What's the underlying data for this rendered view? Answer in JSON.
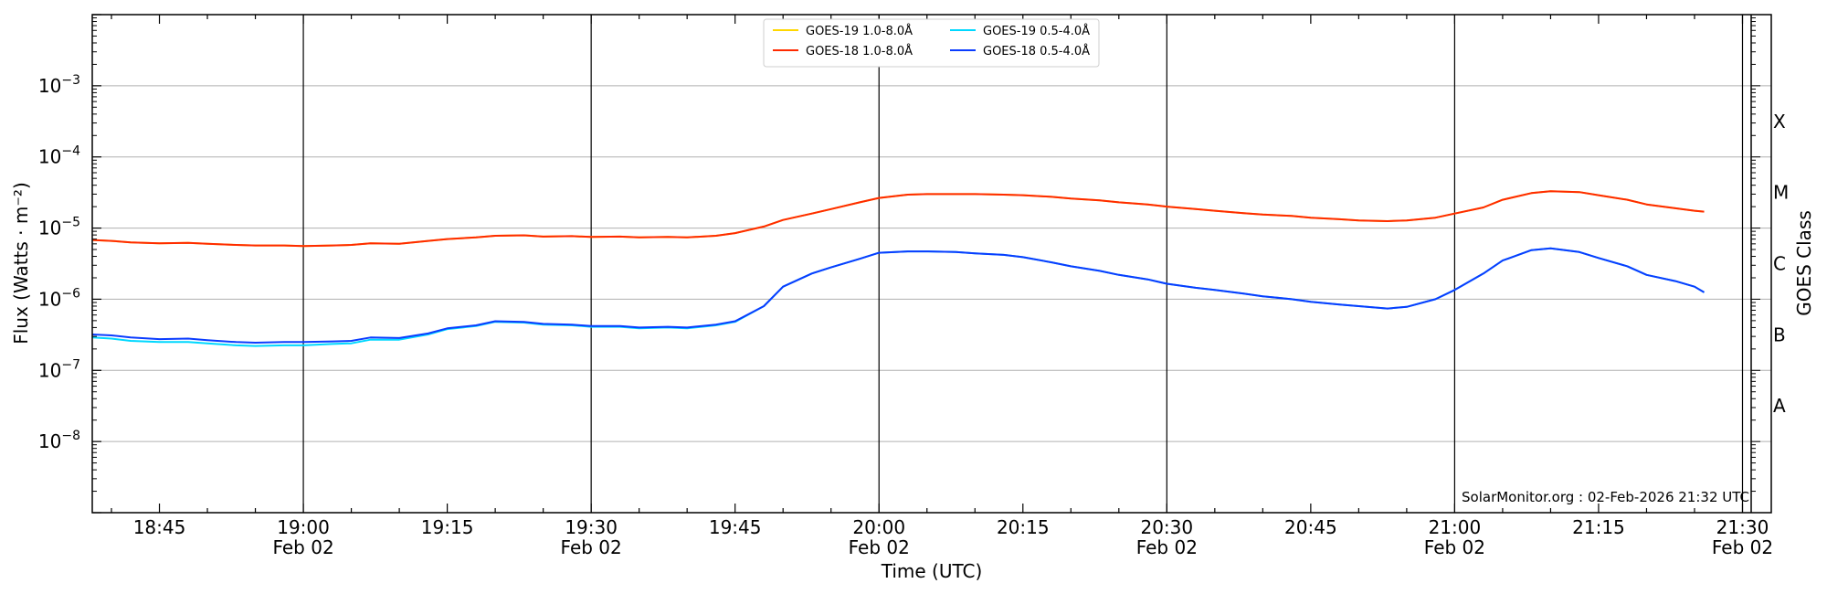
{
  "chart_data": {
    "type": "line",
    "xlabel": "Time (UTC)",
    "ylabel": "Flux (Watts · m⁻²)",
    "y2label": "GOES Class",
    "yscale": "log",
    "ylim": [
      1e-09,
      0.01
    ],
    "xlim": [
      "18:38",
      "21:33"
    ],
    "grid": true,
    "legend_position": "top-center",
    "credit": "SolarMonitor.org : 02-Feb-2026 21:32 UTC",
    "x_ticks": [
      {
        "time": "18:45",
        "label": "18:45",
        "date": ""
      },
      {
        "time": "19:00",
        "label": "19:00",
        "date": "Feb 02"
      },
      {
        "time": "19:15",
        "label": "19:15",
        "date": ""
      },
      {
        "time": "19:30",
        "label": "19:30",
        "date": "Feb 02"
      },
      {
        "time": "19:45",
        "label": "19:45",
        "date": ""
      },
      {
        "time": "20:00",
        "label": "20:00",
        "date": "Feb 02"
      },
      {
        "time": "20:15",
        "label": "20:15",
        "date": ""
      },
      {
        "time": "20:30",
        "label": "20:30",
        "date": "Feb 02"
      },
      {
        "time": "20:45",
        "label": "20:45",
        "date": ""
      },
      {
        "time": "21:00",
        "label": "21:00",
        "date": "Feb 02"
      },
      {
        "time": "21:15",
        "label": "21:15",
        "date": ""
      },
      {
        "time": "21:30",
        "label": "21:30",
        "date": "Feb 02"
      }
    ],
    "vlines": [
      "19:00",
      "19:30",
      "20:00",
      "20:30",
      "21:00",
      "21:30"
    ],
    "y_ticks": [
      {
        "exp": -8,
        "base": "10",
        "sup": "−8"
      },
      {
        "exp": -7,
        "base": "10",
        "sup": "−7"
      },
      {
        "exp": -6,
        "base": "10",
        "sup": "−6"
      },
      {
        "exp": -5,
        "base": "10",
        "sup": "−5"
      },
      {
        "exp": -4,
        "base": "10",
        "sup": "−4"
      },
      {
        "exp": -3,
        "base": "10",
        "sup": "−3"
      }
    ],
    "classes": [
      {
        "label": "A",
        "exp": -7.5
      },
      {
        "label": "B",
        "exp": -6.5
      },
      {
        "label": "C",
        "exp": -5.5
      },
      {
        "label": "M",
        "exp": -4.5
      },
      {
        "label": "X",
        "exp": -3.5
      }
    ],
    "series": [
      {
        "name": "GOES-19 1.0-8.0Å",
        "color": "#ffd700",
        "x": [
          "18:38",
          "18:40",
          "18:42",
          "18:45",
          "18:48",
          "18:50",
          "18:53",
          "18:55",
          "18:58",
          "19:00",
          "19:03",
          "19:05",
          "19:07",
          "19:10",
          "19:13",
          "19:15",
          "19:18",
          "19:20",
          "19:23",
          "19:25",
          "19:28",
          "19:30",
          "19:33",
          "19:35",
          "19:38",
          "19:40",
          "19:43",
          "19:45",
          "19:48",
          "19:50",
          "19:53",
          "19:55",
          "19:58",
          "20:00",
          "20:03",
          "20:05",
          "20:08",
          "20:10",
          "20:13",
          "20:15",
          "20:18",
          "20:20",
          "20:23",
          "20:25",
          "20:28",
          "20:30",
          "20:33",
          "20:35",
          "20:38",
          "20:40",
          "20:43",
          "20:45",
          "20:48",
          "20:50",
          "20:53",
          "20:55",
          "20:58",
          "21:00",
          "21:03",
          "21:05",
          "21:08",
          "21:10",
          "21:13",
          "21:15",
          "21:18",
          "21:20",
          "21:23",
          "21:25",
          "21:26"
        ],
        "y": [
          6.8e-06,
          6.6e-06,
          6.3e-06,
          6.1e-06,
          6.2e-06,
          6e-06,
          5.8e-06,
          5.7e-06,
          5.7e-06,
          5.6e-06,
          5.7e-06,
          5.8e-06,
          6.1e-06,
          6e-06,
          6.6e-06,
          7e-06,
          7.4e-06,
          7.8e-06,
          7.9e-06,
          7.6e-06,
          7.7e-06,
          7.5e-06,
          7.6e-06,
          7.4e-06,
          7.5e-06,
          7.4e-06,
          7.8e-06,
          8.5e-06,
          1.05e-05,
          1.3e-05,
          1.6e-05,
          1.85e-05,
          2.3e-05,
          2.65e-05,
          2.95e-05,
          3e-05,
          3e-05,
          3e-05,
          2.95e-05,
          2.9e-05,
          2.75e-05,
          2.6e-05,
          2.45e-05,
          2.3e-05,
          2.15e-05,
          2e-05,
          1.85e-05,
          1.75e-05,
          1.62e-05,
          1.55e-05,
          1.48e-05,
          1.4e-05,
          1.33e-05,
          1.28e-05,
          1.25e-05,
          1.28e-05,
          1.4e-05,
          1.6e-05,
          1.95e-05,
          2.5e-05,
          3.1e-05,
          3.3e-05,
          3.2e-05,
          2.9e-05,
          2.5e-05,
          2.15e-05,
          1.9e-05,
          1.75e-05,
          1.7e-05
        ]
      },
      {
        "name": "GOES-18 1.0-8.0Å",
        "color": "#ff2a00",
        "x": [
          "18:38",
          "18:40",
          "18:42",
          "18:45",
          "18:48",
          "18:50",
          "18:53",
          "18:55",
          "18:58",
          "19:00",
          "19:03",
          "19:05",
          "19:07",
          "19:10",
          "19:13",
          "19:15",
          "19:18",
          "19:20",
          "19:23",
          "19:25",
          "19:28",
          "19:30",
          "19:33",
          "19:35",
          "19:38",
          "19:40",
          "19:43",
          "19:45",
          "19:48",
          "19:50",
          "19:53",
          "19:55",
          "19:58",
          "20:00",
          "20:03",
          "20:05",
          "20:08",
          "20:10",
          "20:13",
          "20:15",
          "20:18",
          "20:20",
          "20:23",
          "20:25",
          "20:28",
          "20:30",
          "20:33",
          "20:35",
          "20:38",
          "20:40",
          "20:43",
          "20:45",
          "20:48",
          "20:50",
          "20:53",
          "20:55",
          "20:58",
          "21:00",
          "21:03",
          "21:05",
          "21:08",
          "21:10",
          "21:13",
          "21:15",
          "21:18",
          "21:20",
          "21:23",
          "21:25",
          "21:26"
        ],
        "y": [
          6.8e-06,
          6.6e-06,
          6.3e-06,
          6.1e-06,
          6.2e-06,
          6e-06,
          5.8e-06,
          5.7e-06,
          5.7e-06,
          5.6e-06,
          5.7e-06,
          5.8e-06,
          6.1e-06,
          6e-06,
          6.6e-06,
          7e-06,
          7.4e-06,
          7.8e-06,
          7.9e-06,
          7.6e-06,
          7.7e-06,
          7.5e-06,
          7.6e-06,
          7.4e-06,
          7.5e-06,
          7.4e-06,
          7.8e-06,
          8.5e-06,
          1.05e-05,
          1.3e-05,
          1.6e-05,
          1.85e-05,
          2.3e-05,
          2.65e-05,
          2.95e-05,
          3e-05,
          3e-05,
          3e-05,
          2.95e-05,
          2.9e-05,
          2.75e-05,
          2.6e-05,
          2.45e-05,
          2.3e-05,
          2.15e-05,
          2e-05,
          1.85e-05,
          1.75e-05,
          1.62e-05,
          1.55e-05,
          1.48e-05,
          1.4e-05,
          1.33e-05,
          1.28e-05,
          1.25e-05,
          1.28e-05,
          1.4e-05,
          1.6e-05,
          1.95e-05,
          2.5e-05,
          3.1e-05,
          3.3e-05,
          3.2e-05,
          2.9e-05,
          2.5e-05,
          2.15e-05,
          1.9e-05,
          1.75e-05,
          1.7e-05
        ]
      },
      {
        "name": "GOES-19 0.5-4.0Å",
        "color": "#00d8ff",
        "x": [
          "18:38",
          "18:40",
          "18:42",
          "18:45",
          "18:48",
          "18:50",
          "18:53",
          "18:55",
          "18:58",
          "19:00",
          "19:03",
          "19:05",
          "19:07",
          "19:10",
          "19:13",
          "19:15",
          "19:18",
          "19:20",
          "19:23",
          "19:25",
          "19:28",
          "19:30",
          "19:33",
          "19:35",
          "19:38",
          "19:40",
          "19:43",
          "19:45",
          "19:48",
          "19:50",
          "19:53",
          "19:55",
          "19:58",
          "20:00",
          "20:03",
          "20:05",
          "20:08",
          "20:10",
          "20:13",
          "20:15",
          "20:18",
          "20:20",
          "20:23",
          "20:25",
          "20:28",
          "20:30",
          "20:33",
          "20:35",
          "20:38",
          "20:40",
          "20:43",
          "20:45",
          "20:48",
          "20:50",
          "20:53",
          "20:55",
          "20:58",
          "21:00",
          "21:03",
          "21:05",
          "21:08",
          "21:10",
          "21:13",
          "21:15",
          "21:18",
          "21:20",
          "21:23",
          "21:25",
          "21:26"
        ],
        "y": [
          2.9e-07,
          2.8e-07,
          2.6e-07,
          2.5e-07,
          2.5e-07,
          2.4e-07,
          2.25e-07,
          2.2e-07,
          2.25e-07,
          2.25e-07,
          2.35e-07,
          2.4e-07,
          2.7e-07,
          2.7e-07,
          3.2e-07,
          3.8e-07,
          4.2e-07,
          4.8e-07,
          4.7e-07,
          4.4e-07,
          4.3e-07,
          4.1e-07,
          4.1e-07,
          3.9e-07,
          4e-07,
          3.9e-07,
          4.3e-07,
          4.8e-07,
          8e-07,
          1.5e-06,
          2.3e-06,
          2.8e-06,
          3.7e-06,
          4.5e-06,
          4.7e-06,
          4.7e-06,
          4.6e-06,
          4.4e-06,
          4.2e-06,
          3.9e-06,
          3.3e-06,
          2.9e-06,
          2.5e-06,
          2.2e-06,
          1.9e-06,
          1.65e-06,
          1.45e-06,
          1.35e-06,
          1.2e-06,
          1.1e-06,
          1e-06,
          9.2e-07,
          8.4e-07,
          8e-07,
          7.4e-07,
          7.8e-07,
          1e-06,
          1.35e-06,
          2.3e-06,
          3.5e-06,
          4.9e-06,
          5.2e-06,
          4.6e-06,
          3.8e-06,
          2.9e-06,
          2.2e-06,
          1.8e-06,
          1.5e-06,
          1.25e-06
        ]
      },
      {
        "name": "GOES-18 0.5-4.0Å",
        "color": "#0a3cff",
        "x": [
          "18:38",
          "18:40",
          "18:42",
          "18:45",
          "18:48",
          "18:50",
          "18:53",
          "18:55",
          "18:58",
          "19:00",
          "19:03",
          "19:05",
          "19:07",
          "19:10",
          "19:13",
          "19:15",
          "19:18",
          "19:20",
          "19:23",
          "19:25",
          "19:28",
          "19:30",
          "19:33",
          "19:35",
          "19:38",
          "19:40",
          "19:43",
          "19:45",
          "19:48",
          "19:50",
          "19:53",
          "19:55",
          "19:58",
          "20:00",
          "20:03",
          "20:05",
          "20:08",
          "20:10",
          "20:13",
          "20:15",
          "20:18",
          "20:20",
          "20:23",
          "20:25",
          "20:28",
          "20:30",
          "20:33",
          "20:35",
          "20:38",
          "20:40",
          "20:43",
          "20:45",
          "20:48",
          "20:50",
          "20:53",
          "20:55",
          "20:58",
          "21:00",
          "21:03",
          "21:05",
          "21:08",
          "21:10",
          "21:13",
          "21:15",
          "21:18",
          "21:20",
          "21:23",
          "21:25",
          "21:26"
        ],
        "y": [
          3.2e-07,
          3.1e-07,
          2.9e-07,
          2.75e-07,
          2.8e-07,
          2.65e-07,
          2.5e-07,
          2.45e-07,
          2.5e-07,
          2.5e-07,
          2.55e-07,
          2.6e-07,
          2.9e-07,
          2.85e-07,
          3.3e-07,
          3.9e-07,
          4.3e-07,
          4.9e-07,
          4.8e-07,
          4.5e-07,
          4.4e-07,
          4.2e-07,
          4.2e-07,
          4e-07,
          4.1e-07,
          4e-07,
          4.4e-07,
          4.9e-07,
          8e-07,
          1.5e-06,
          2.3e-06,
          2.8e-06,
          3.7e-06,
          4.5e-06,
          4.7e-06,
          4.7e-06,
          4.6e-06,
          4.4e-06,
          4.2e-06,
          3.9e-06,
          3.3e-06,
          2.9e-06,
          2.5e-06,
          2.2e-06,
          1.9e-06,
          1.65e-06,
          1.45e-06,
          1.35e-06,
          1.2e-06,
          1.1e-06,
          1e-06,
          9.2e-07,
          8.4e-07,
          8e-07,
          7.4e-07,
          7.8e-07,
          1e-06,
          1.35e-06,
          2.3e-06,
          3.5e-06,
          4.9e-06,
          5.2e-06,
          4.6e-06,
          3.8e-06,
          2.9e-06,
          2.2e-06,
          1.8e-06,
          1.5e-06,
          1.25e-06
        ]
      }
    ]
  }
}
